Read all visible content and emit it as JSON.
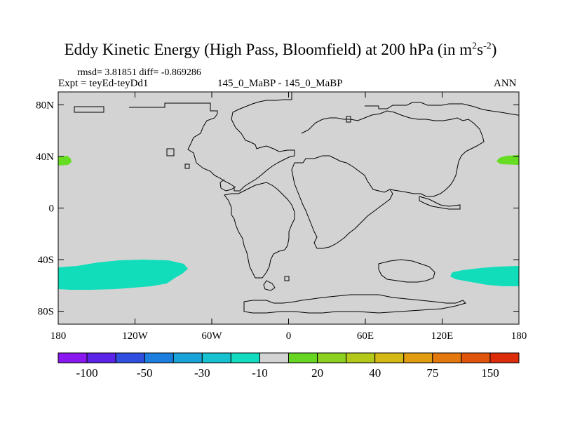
{
  "title": {
    "text": "Eddy Kinetic Energy (High Pass, Bloomfield) at 200 hPa (in m",
    "sup1": "2",
    "s": "s",
    "sup2": "-2",
    "close": ")"
  },
  "stats": {
    "rmsd_line": "rmsd= 3.81851 diff= -0.869286",
    "expt": "Expt = teyEd-teyDd1",
    "case": "145_0_MaBP - 145_0_MaBP",
    "season": "ANN"
  },
  "map": {
    "lat_labels": [
      "80N",
      "40N",
      "0",
      "40S",
      "80S"
    ],
    "lat_values": [
      80,
      40,
      0,
      -40,
      -80
    ],
    "lon_labels": [
      "180",
      "120W",
      "60W",
      "0",
      "60E",
      "120E",
      "180"
    ],
    "lon_values": [
      -180,
      -120,
      -60,
      0,
      60,
      120,
      180
    ],
    "lat_range": [
      -90,
      90
    ],
    "lon_range": [
      -180,
      180
    ],
    "background_color": "#d3d3d3",
    "positive_anomaly_color": "#66dd22",
    "negative_anomaly_color": "#11ddbb"
  },
  "colorbar": {
    "colors": [
      "#8a16f0",
      "#5b24e8",
      "#2e4fe0",
      "#1c7fe0",
      "#1aa3d8",
      "#16c2d0",
      "#12dcc0",
      "#d3d3d3",
      "#66d622",
      "#8cd020",
      "#b4c81a",
      "#d4b814",
      "#e29c10",
      "#e2780e",
      "#e0540c",
      "#dc2c0a"
    ],
    "labels": [
      "-100",
      "-50",
      "-30",
      "-10",
      "20",
      "40",
      "75",
      "150"
    ],
    "label_boundary_index": [
      2,
      4,
      6,
      8,
      10,
      12,
      14,
      16
    ]
  }
}
